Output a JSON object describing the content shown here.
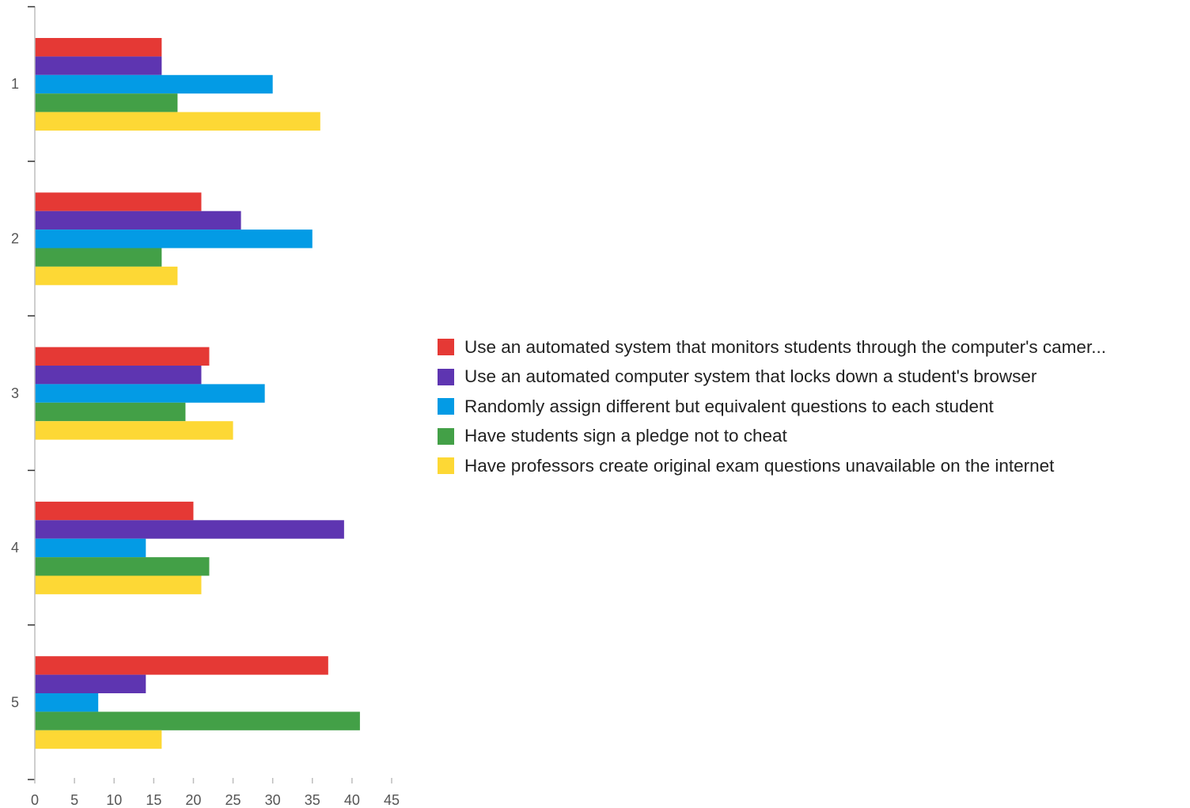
{
  "chart_data": {
    "type": "bar",
    "orientation": "horizontal",
    "categories": [
      "1",
      "2",
      "3",
      "4",
      "5"
    ],
    "series": [
      {
        "name": "Use an automated system that monitors students through the computer's camer...",
        "color": "#e53935",
        "values": [
          16,
          21,
          22,
          20,
          37
        ]
      },
      {
        "name": "Use an automated computer system that locks down a student's browser",
        "color": "#5e35b1",
        "values": [
          16,
          26,
          21,
          39,
          14
        ]
      },
      {
        "name": "Randomly assign different but equivalent questions to each student",
        "color": "#039be5",
        "values": [
          30,
          35,
          29,
          14,
          8
        ]
      },
      {
        "name": "Have students sign a pledge not to cheat",
        "color": "#43a047",
        "values": [
          18,
          16,
          19,
          22,
          41
        ]
      },
      {
        "name": "Have professors create original exam questions unavailable on the internet",
        "color": "#fdd835",
        "values": [
          36,
          18,
          25,
          21,
          16
        ]
      }
    ],
    "x_ticks": [
      "0",
      "5",
      "10",
      "15",
      "20",
      "25",
      "30",
      "35",
      "40",
      "45"
    ],
    "xlim": [
      0,
      45
    ],
    "grid": false,
    "legend_position": "right"
  }
}
